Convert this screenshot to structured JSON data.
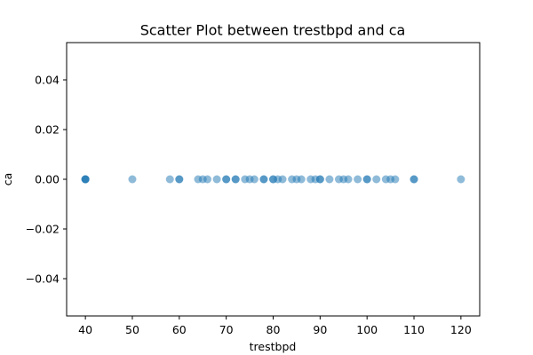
{
  "chart_data": {
    "type": "scatter",
    "title": "Scatter Plot between trestbpd and ca",
    "xlabel": "trestbpd",
    "ylabel": "ca",
    "xlim": [
      36,
      124
    ],
    "ylim": [
      -0.055,
      0.055
    ],
    "xticks": [
      40,
      50,
      60,
      70,
      80,
      90,
      100,
      110,
      120
    ],
    "yticks": [
      0.04,
      0.02,
      0.0,
      -0.02,
      -0.04
    ],
    "ytick_labels": [
      "0.04",
      "0.02",
      "0.00",
      "−0.02",
      "−0.04"
    ],
    "grid": false,
    "color": "#1f77b4",
    "points": [
      {
        "x": 40,
        "y": 0
      },
      {
        "x": 40,
        "y": 0
      },
      {
        "x": 40,
        "y": 0
      },
      {
        "x": 40,
        "y": 0
      },
      {
        "x": 50,
        "y": 0
      },
      {
        "x": 58,
        "y": 0
      },
      {
        "x": 60,
        "y": 0
      },
      {
        "x": 60,
        "y": 0
      },
      {
        "x": 64,
        "y": 0
      },
      {
        "x": 65,
        "y": 0
      },
      {
        "x": 66,
        "y": 0
      },
      {
        "x": 68,
        "y": 0
      },
      {
        "x": 70,
        "y": 0
      },
      {
        "x": 70,
        "y": 0
      },
      {
        "x": 72,
        "y": 0
      },
      {
        "x": 72,
        "y": 0
      },
      {
        "x": 74,
        "y": 0
      },
      {
        "x": 75,
        "y": 0
      },
      {
        "x": 76,
        "y": 0
      },
      {
        "x": 78,
        "y": 0
      },
      {
        "x": 78,
        "y": 0
      },
      {
        "x": 80,
        "y": 0
      },
      {
        "x": 80,
        "y": 0
      },
      {
        "x": 81,
        "y": 0
      },
      {
        "x": 82,
        "y": 0
      },
      {
        "x": 84,
        "y": 0
      },
      {
        "x": 85,
        "y": 0
      },
      {
        "x": 86,
        "y": 0
      },
      {
        "x": 88,
        "y": 0
      },
      {
        "x": 89,
        "y": 0
      },
      {
        "x": 90,
        "y": 0
      },
      {
        "x": 90,
        "y": 0
      },
      {
        "x": 92,
        "y": 0
      },
      {
        "x": 94,
        "y": 0
      },
      {
        "x": 95,
        "y": 0
      },
      {
        "x": 96,
        "y": 0
      },
      {
        "x": 98,
        "y": 0
      },
      {
        "x": 100,
        "y": 0
      },
      {
        "x": 100,
        "y": 0
      },
      {
        "x": 102,
        "y": 0
      },
      {
        "x": 104,
        "y": 0
      },
      {
        "x": 105,
        "y": 0
      },
      {
        "x": 106,
        "y": 0
      },
      {
        "x": 110,
        "y": 0
      },
      {
        "x": 110,
        "y": 0
      },
      {
        "x": 120,
        "y": 0
      }
    ]
  }
}
